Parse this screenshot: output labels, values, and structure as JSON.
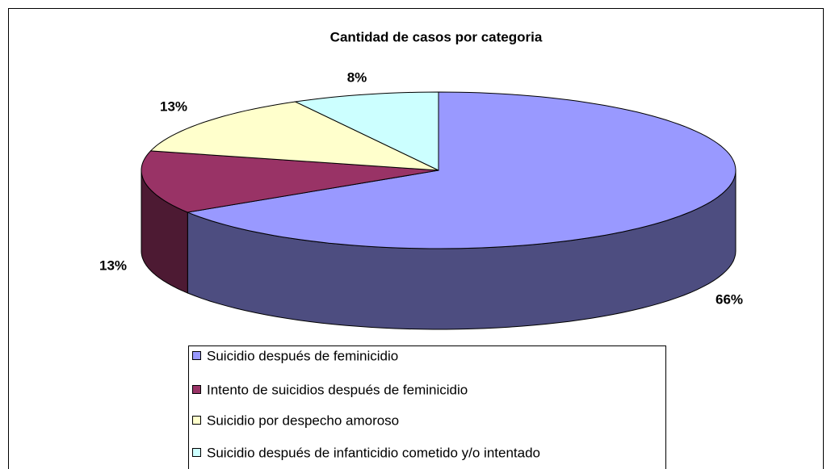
{
  "chart_data": {
    "type": "pie3d",
    "title": "Cantidad de casos por categoria",
    "categories": [
      "Suicidio después de feminicidio",
      "Intento de suicidios después de feminicidio",
      "Suicidio por despecho amoroso",
      "Suicidio después de infanticidio cometido y/o intentado"
    ],
    "values": [
      66,
      13,
      13,
      8
    ],
    "value_labels": [
      "66%",
      "13%",
      "13%",
      "8%"
    ],
    "colors": [
      "#9999ff",
      "#993366",
      "#ffffcc",
      "#ccffff"
    ],
    "legend": "bottom"
  }
}
